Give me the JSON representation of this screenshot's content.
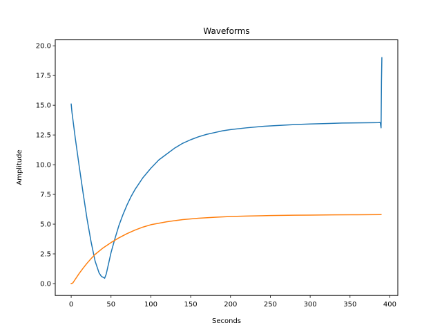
{
  "chart_data": {
    "type": "line",
    "title": "Waveforms",
    "xlabel": "Seconds",
    "ylabel": "Amplitude",
    "xlim": [
      -20,
      410
    ],
    "ylim": [
      -1.0,
      20.5
    ],
    "xticks": [
      0,
      50,
      100,
      150,
      200,
      250,
      300,
      350,
      400
    ],
    "xtick_labels": [
      "0",
      "50",
      "100",
      "150",
      "200",
      "250",
      "300",
      "350",
      "400"
    ],
    "yticks": [
      0.0,
      2.5,
      5.0,
      7.5,
      10.0,
      12.5,
      15.0,
      17.5,
      20.0
    ],
    "ytick_labels": [
      "0.0",
      "2.5",
      "5.0",
      "7.5",
      "10.0",
      "12.5",
      "15.0",
      "17.5",
      "20.0"
    ],
    "grid": false,
    "legend": "none",
    "series": [
      {
        "color": "#1f77b4",
        "x": [
          0,
          1,
          5,
          10,
          15,
          20,
          25,
          30,
          35,
          38,
          41,
          42,
          44,
          47,
          50,
          55,
          60,
          65,
          70,
          75,
          80,
          90,
          100,
          110,
          120,
          130,
          140,
          150,
          160,
          170,
          180,
          190,
          200,
          220,
          240,
          260,
          280,
          300,
          320,
          340,
          360,
          380,
          386,
          388,
          388.5,
          389,
          389.5,
          390
        ],
        "y": [
          15.1,
          14.4,
          12.3,
          9.9,
          7.6,
          5.4,
          3.5,
          1.9,
          0.9,
          0.6,
          0.5,
          0.45,
          0.8,
          1.7,
          2.6,
          3.8,
          4.9,
          5.8,
          6.6,
          7.3,
          7.9,
          8.9,
          9.7,
          10.4,
          10.9,
          11.4,
          11.8,
          12.1,
          12.35,
          12.55,
          12.7,
          12.85,
          12.95,
          13.1,
          13.22,
          13.3,
          13.37,
          13.42,
          13.46,
          13.5,
          13.52,
          13.53,
          13.54,
          13.55,
          13.3,
          13.1,
          17.0,
          19.0
        ]
      },
      {
        "color": "#ff7f0e",
        "x": [
          0,
          2,
          5,
          10,
          15,
          20,
          25,
          30,
          40,
          50,
          60,
          70,
          80,
          90,
          100,
          120,
          140,
          160,
          180,
          200,
          220,
          250,
          280,
          300,
          330,
          360,
          389
        ],
        "y": [
          0.0,
          0.05,
          0.35,
          0.85,
          1.3,
          1.72,
          2.1,
          2.45,
          3.0,
          3.45,
          3.85,
          4.2,
          4.5,
          4.75,
          4.95,
          5.2,
          5.38,
          5.5,
          5.58,
          5.64,
          5.68,
          5.72,
          5.75,
          5.76,
          5.78,
          5.79,
          5.8
        ]
      }
    ]
  }
}
